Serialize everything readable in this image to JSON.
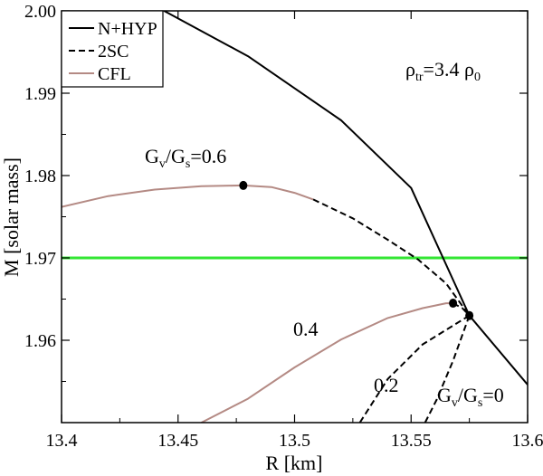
{
  "chart_data": {
    "type": "line",
    "xlabel": "R [km]",
    "ylabel": "M [solar mass]",
    "xlim": [
      13.4,
      13.6
    ],
    "ylim": [
      1.95,
      2.0
    ],
    "x_ticks": [
      "13.4",
      "13.45",
      "13.5",
      "13.55",
      "13.6"
    ],
    "y_ticks": [
      "1.96",
      "1.97",
      "1.98",
      "1.99",
      "2.00"
    ],
    "x_tick_values": [
      13.4,
      13.45,
      13.5,
      13.55,
      13.6
    ],
    "y_tick_values": [
      1.96,
      1.97,
      1.98,
      1.99,
      2.0
    ],
    "legend": {
      "placement": "top-left",
      "items": [
        {
          "label": "N+HYP",
          "style": "solid",
          "color": "#000000"
        },
        {
          "label": "2SC",
          "style": "dashed",
          "color": "#000000"
        },
        {
          "label": "CFL",
          "style": "solid",
          "color": "#b48a84"
        }
      ]
    },
    "series": [
      {
        "name": "N+HYP",
        "style": "solid",
        "color": "#000000",
        "points": [
          [
            13.444,
            2.0
          ],
          [
            13.48,
            1.9945
          ],
          [
            13.52,
            1.9867
          ],
          [
            13.55,
            1.9785
          ],
          [
            13.575,
            1.963
          ],
          [
            13.6,
            1.9546
          ]
        ]
      },
      {
        "name": "CFL",
        "style": "solid",
        "color": "#b48a84",
        "points": [
          [
            13.4,
            1.9762
          ],
          [
            13.42,
            1.9775
          ],
          [
            13.44,
            1.9783
          ],
          [
            13.46,
            1.9787
          ],
          [
            13.478,
            1.9788
          ],
          [
            13.49,
            1.9786
          ],
          [
            13.5,
            1.9779
          ],
          [
            13.508,
            1.9771
          ]
        ]
      },
      {
        "name": "2SC",
        "style": "dashed",
        "color": "#000000",
        "points": [
          [
            13.508,
            1.9771
          ],
          [
            13.525,
            1.9748
          ],
          [
            13.54,
            1.9722
          ],
          [
            13.553,
            1.9698
          ],
          [
            13.565,
            1.9669
          ],
          [
            13.575,
            1.963
          ]
        ]
      },
      {
        "name": "CFL",
        "style": "solid",
        "color": "#b48a84",
        "points": [
          [
            13.46,
            1.95
          ],
          [
            13.48,
            1.9529
          ],
          [
            13.5,
            1.9567
          ],
          [
            13.52,
            1.9601
          ],
          [
            13.54,
            1.9627
          ],
          [
            13.555,
            1.9639
          ],
          [
            13.565,
            1.9645
          ],
          [
            13.568,
            1.9645
          ]
        ]
      },
      {
        "name": "2SC",
        "style": "dashed",
        "color": "#000000",
        "points": [
          [
            13.568,
            1.9645
          ],
          [
            13.572,
            1.9639
          ],
          [
            13.575,
            1.963
          ]
        ]
      },
      {
        "name": "2SC",
        "style": "dashed",
        "color": "#000000",
        "points": [
          [
            13.575,
            1.963
          ],
          [
            13.555,
            1.9595
          ],
          [
            13.54,
            1.9553
          ],
          [
            13.528,
            1.95
          ]
        ]
      },
      {
        "name": "2SC",
        "style": "dashed",
        "color": "#000000",
        "points": [
          [
            13.575,
            1.963
          ],
          [
            13.568,
            1.9575
          ],
          [
            13.561,
            1.9528
          ],
          [
            13.556,
            1.95
          ]
        ]
      }
    ],
    "reference_line": {
      "y": 1.97,
      "color": "#33e633"
    },
    "markers": [
      [
        13.478,
        1.9788
      ],
      [
        13.568,
        1.9645
      ],
      [
        13.575,
        1.963
      ]
    ],
    "annotations": [
      {
        "text": "ρtr=3.4 ρ0",
        "x": 13.565,
        "y": 1.9907
      },
      {
        "text": "Gv/Gs=0.6",
        "x": 13.44,
        "y": 1.9815
      },
      {
        "text": "0.4",
        "x": 13.519,
        "y": 1.9637
      },
      {
        "text": "0.2",
        "x": 13.537,
        "y": 1.9536
      },
      {
        "text": "Gv/Gs=0",
        "x": 13.573,
        "y": 1.9524
      }
    ]
  }
}
